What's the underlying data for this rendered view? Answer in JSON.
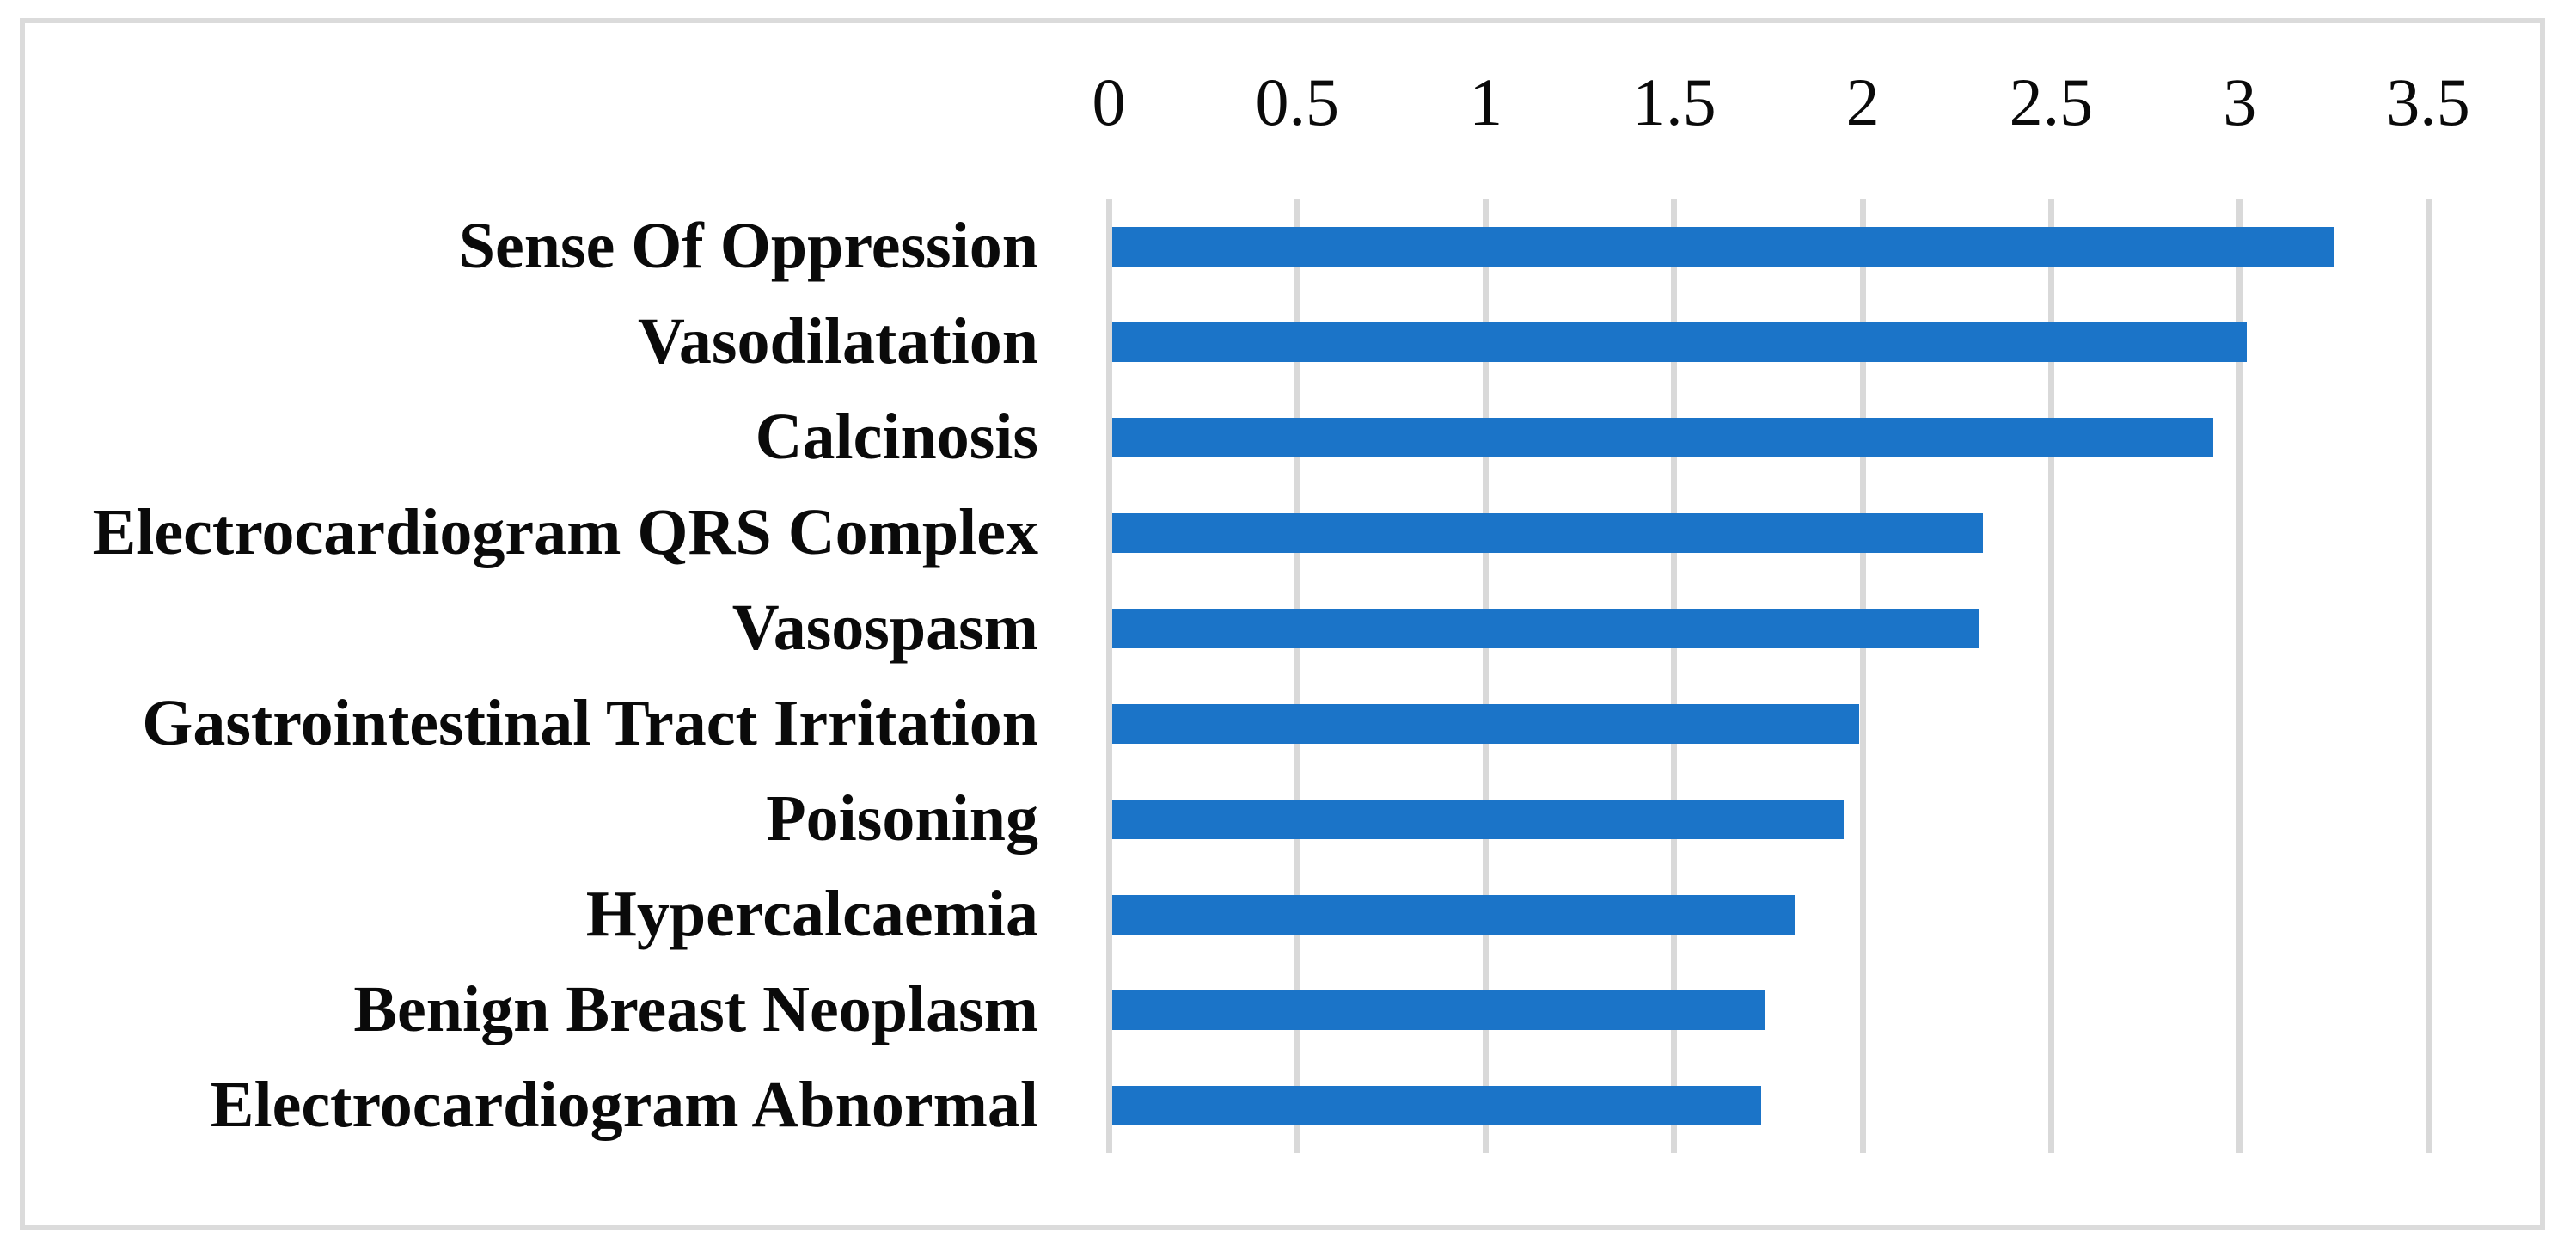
{
  "chart_data": {
    "type": "bar",
    "orientation": "horizontal",
    "title": "",
    "xlabel": "",
    "ylabel": "",
    "categories": [
      "Sense Of Oppression",
      "Vasodilatation",
      "Calcinosis",
      "Electrocardiogram QRS Complex",
      "Vasospasm",
      "Gastrointestinal Tract Irritation",
      "Poisoning",
      "Hypercalcaemia",
      "Benign Breast Neoplasm",
      "Electrocardiogram Abnormal"
    ],
    "values": [
      3.25,
      3.02,
      2.93,
      2.32,
      2.31,
      1.99,
      1.95,
      1.82,
      1.74,
      1.73
    ],
    "x_axis": {
      "position": "top",
      "min": 0,
      "max": 3.5,
      "tick_interval": 0.5,
      "tick_labels": [
        "0",
        "0.5",
        "1",
        "1.5",
        "2",
        "2.5",
        "3",
        "3.5"
      ]
    },
    "legend": "none",
    "grid": "vertical major gridlines",
    "colors": {
      "bar": "#1B74C8",
      "gridline": "#D9D9D9",
      "frame": "#DBDBDB",
      "text": "#0A0A0A",
      "background": "#FFFFFF"
    }
  }
}
